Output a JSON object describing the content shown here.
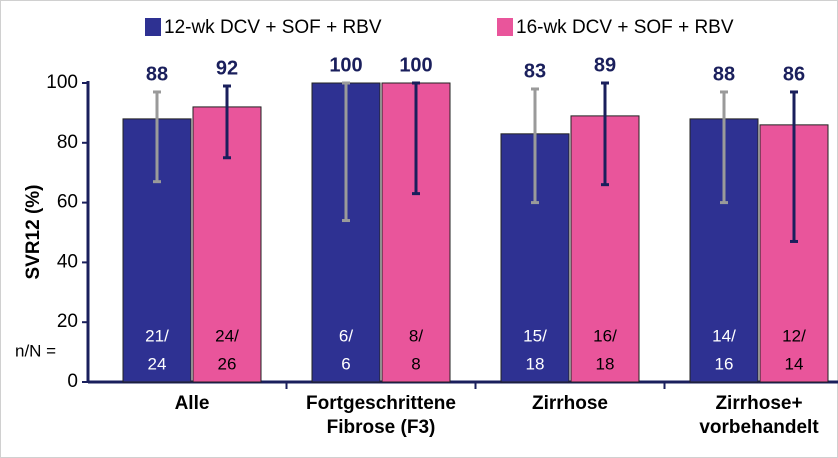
{
  "chart_data": {
    "type": "bar",
    "y_label": "SVR12 (%)",
    "annotation": "n/N =",
    "categories": [
      "Alle",
      "Fortgeschrittene\nFibrose (F3)",
      "Zirrhose",
      "Zirrhose+\nvorbehandelt"
    ],
    "series": [
      {
        "name": "12-wk DCV + SOF + RBV",
        "color": "#2e3192",
        "error_color": "#9a9a9a",
        "label_color": "#ffffff",
        "values": [
          88,
          100,
          83,
          88
        ],
        "ci_low": [
          67,
          54,
          60,
          60
        ],
        "ci_high": [
          97,
          100,
          98,
          97
        ],
        "n_top": [
          "21/",
          "6/",
          "15/",
          "14/"
        ],
        "n_bottom": [
          "24",
          "6",
          "18",
          "16"
        ]
      },
      {
        "name": "16-wk DCV + SOF + RBV",
        "color": "#e9559b",
        "error_color": "#1a1f5c",
        "label_color": "#000000",
        "values": [
          92,
          100,
          89,
          86
        ],
        "ci_low": [
          75,
          63,
          66,
          47
        ],
        "ci_high": [
          99,
          100,
          100,
          97
        ],
        "n_top": [
          "24/",
          "8/",
          "16/",
          "12/"
        ],
        "n_bottom": [
          "26",
          "8",
          "18",
          "14"
        ]
      }
    ],
    "ylim": [
      0,
      100
    ],
    "yticks": [
      0,
      20,
      40,
      60,
      80,
      100
    ]
  }
}
